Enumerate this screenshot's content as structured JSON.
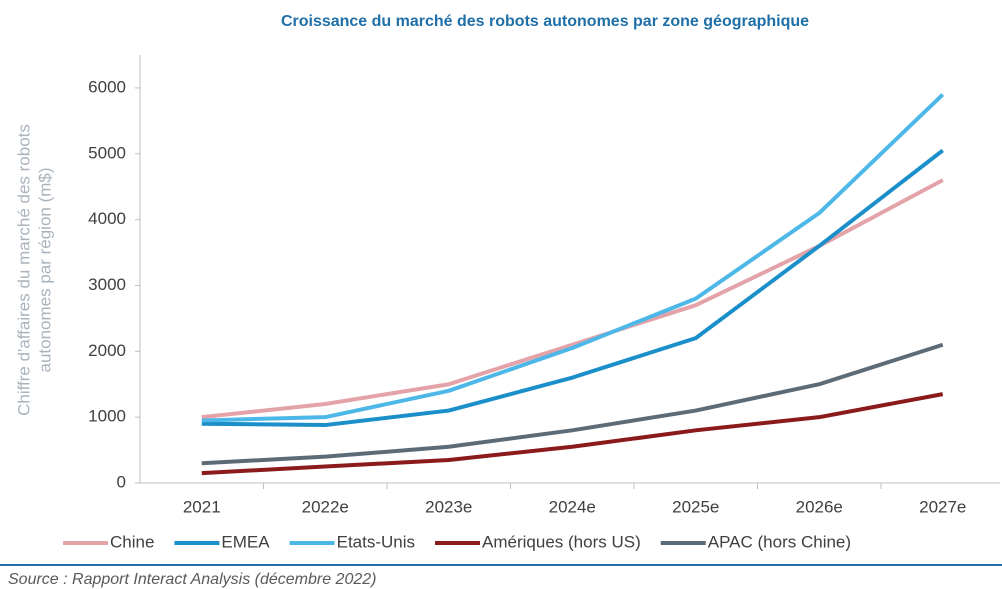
{
  "chart_data": {
    "type": "line",
    "title": "Croissance du marché des robots autonomes par zone géographique",
    "ylabel": [
      "Chiffre d'affaires du marché des robots",
      "autonomes par région (m$)"
    ],
    "categories": [
      "2021",
      "2022e",
      "2023e",
      "2024e",
      "2025e",
      "2026e",
      "2027e"
    ],
    "series": [
      {
        "name": "Chine",
        "color": "#e3a3a8",
        "values": [
          1000,
          1200,
          1500,
          2100,
          2700,
          3600,
          4600
        ]
      },
      {
        "name": "EMEA",
        "color": "#1b8fc9",
        "values": [
          900,
          880,
          1100,
          1600,
          2200,
          3600,
          5050
        ]
      },
      {
        "name": "Etats-Unis",
        "color": "#4db8e8",
        "values": [
          950,
          1000,
          1400,
          2050,
          2800,
          4100,
          5900
        ]
      },
      {
        "name": "Amériques (hors US)",
        "color": "#8b1a1a",
        "values": [
          150,
          250,
          350,
          550,
          800,
          1000,
          1350
        ]
      },
      {
        "name": "APAC (hors Chine)",
        "color": "#5d6b77",
        "values": [
          300,
          400,
          550,
          800,
          1100,
          1500,
          2100
        ]
      }
    ],
    "ylim": [
      0,
      6500
    ],
    "yticks": [
      0,
      1000,
      2000,
      3000,
      4000,
      5000,
      6000
    ],
    "legend": "bottom",
    "source": "Source : Rapport Interact Analysis (décembre 2022)"
  }
}
